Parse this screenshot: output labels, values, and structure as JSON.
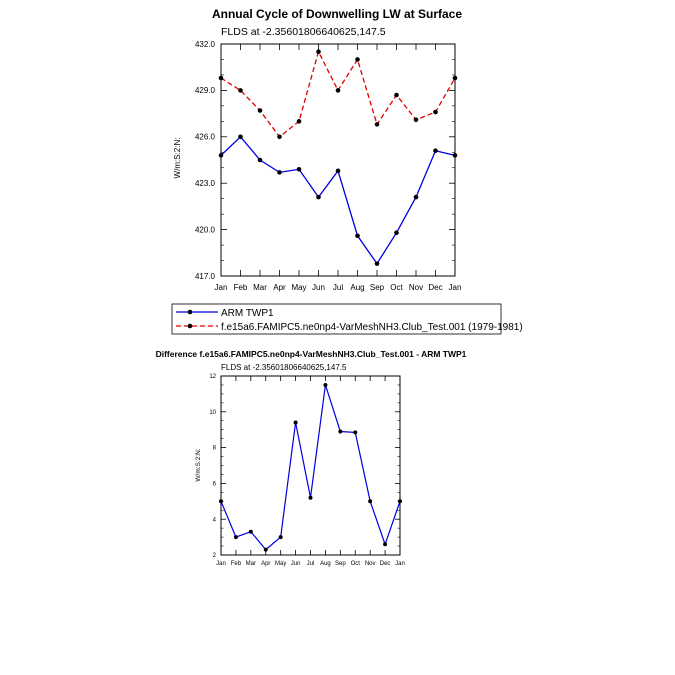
{
  "chart_data": [
    {
      "type": "line",
      "title": "Annual Cycle of Downwelling LW at Surface",
      "subtitle": "FLDS at -2.35601806640625,147.5",
      "ylabel": "W/m:S:2:N:",
      "xlabel": "",
      "categories": [
        "Jan",
        "Feb",
        "Mar",
        "Apr",
        "May",
        "Jun",
        "Jul",
        "Aug",
        "Sep",
        "Oct",
        "Nov",
        "Dec",
        "Jan"
      ],
      "ylim": [
        417.0,
        432.0
      ],
      "yticks": [
        "417.0",
        "420.0",
        "423.0",
        "426.0",
        "429.0",
        "432.0"
      ],
      "ytick_values": [
        417,
        420,
        423,
        426,
        429,
        432
      ],
      "series": [
        {
          "name": "ARM TWP1",
          "color": "#0000e0",
          "dash": "solid",
          "values": [
            424.8,
            426.0,
            424.5,
            423.7,
            423.9,
            422.1,
            423.8,
            419.6,
            417.8,
            419.8,
            422.1,
            425.1,
            424.8
          ]
        },
        {
          "name": "f.e15a6.FAMIPC5.ne0np4-VarMeshNH3.Club_Test.001 (1979-1981)",
          "color": "#e00000",
          "dash": "dashed",
          "values": [
            429.8,
            429.0,
            427.7,
            426.0,
            427.0,
            431.5,
            429.0,
            431.0,
            426.8,
            428.7,
            427.1,
            427.6,
            429.8
          ]
        }
      ],
      "legend_placement": "bottom"
    },
    {
      "type": "line",
      "title": "Difference f.e15a6.FAMIPC5.ne0np4-VarMeshNH3.Club_Test.001 - ARM TWP1",
      "subtitle": "FLDS at -2.35601806640625,147.5",
      "ylabel": "W/m:S:2:N:",
      "xlabel": "",
      "categories": [
        "Jan",
        "Feb",
        "Mar",
        "Apr",
        "May",
        "Jun",
        "Jul",
        "Aug",
        "Sep",
        "Oct",
        "Nov",
        "Dec",
        "Jan"
      ],
      "ylim": [
        2,
        12
      ],
      "yticks": [
        "2",
        "4",
        "6",
        "8",
        "10",
        "12"
      ],
      "ytick_values": [
        2,
        4,
        6,
        8,
        10,
        12
      ],
      "series": [
        {
          "color": "#0000e0",
          "dash": "solid",
          "values": [
            5.0,
            3.0,
            3.3,
            2.3,
            3.0,
            9.4,
            5.2,
            11.5,
            8.9,
            8.85,
            5.0,
            2.6,
            5.0
          ]
        }
      ]
    }
  ]
}
